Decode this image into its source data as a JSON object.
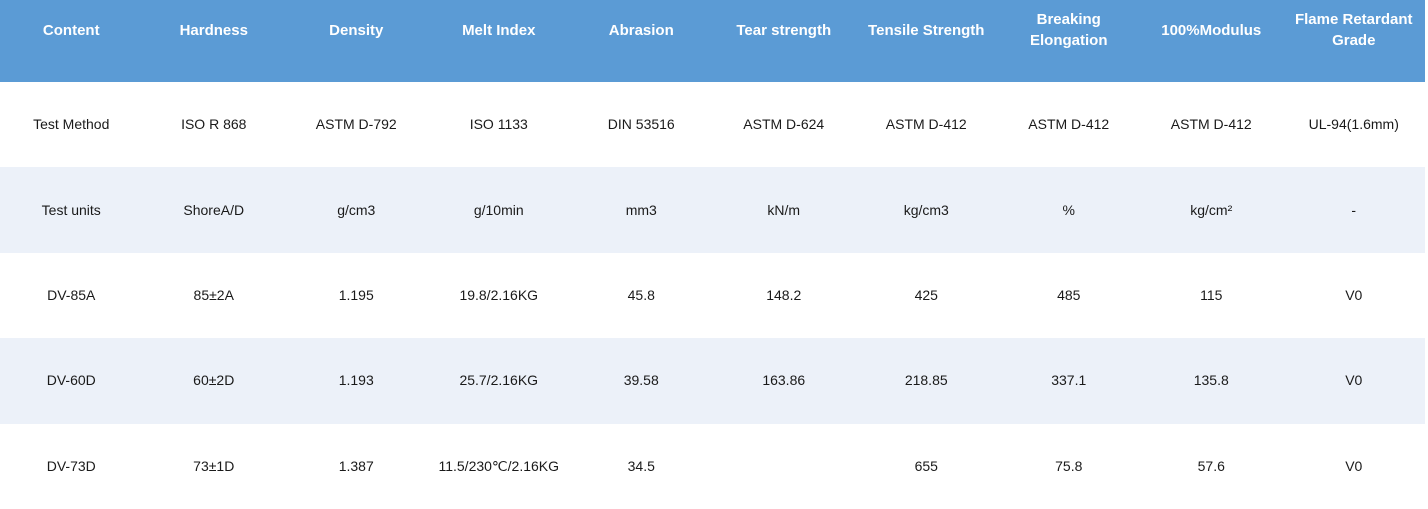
{
  "table": {
    "columns": [
      "Content",
      "Hardness",
      "Density",
      "Melt Index",
      "Abrasion",
      "Tear strength",
      "Tensile Strength",
      "Breaking Elongation",
      "100%Modulus",
      "Flame Retardant Grade"
    ],
    "rows": [
      [
        "Test Method",
        "ISO R 868",
        "ASTM D-792",
        "ISO 1133",
        "DIN 53516",
        "ASTM D-624",
        "ASTM D-412",
        "ASTM D-412",
        "ASTM D-412",
        "UL-94(1.6mm)"
      ],
      [
        "Test units",
        "ShoreA/D",
        "g/cm3",
        "g/10min",
        "mm3",
        "kN/m",
        "kg/cm3",
        "%",
        "kg/cm²",
        "-"
      ],
      [
        "DV-85A",
        "85±2A",
        "1.195",
        "19.8/2.16KG",
        "45.8",
        "148.2",
        "425",
        "485",
        "115",
        "V0"
      ],
      [
        "DV-60D",
        "60±2D",
        "1.193",
        "25.7/2.16KG",
        "39.58",
        "163.86",
        "218.85",
        "337.1",
        "135.8",
        "V0"
      ],
      [
        "DV-73D",
        "73±1D",
        "1.387",
        "11.5/230℃/2.16KG",
        "34.5",
        "",
        "655",
        "75.8",
        "57.6",
        "V0"
      ]
    ],
    "colors": {
      "header_bg": "#5B9BD5",
      "header_text": "#FFFFFF",
      "row_bg": "#FFFFFF",
      "row_alt_bg": "#ECF1F9",
      "body_text": "#1A1A1A"
    }
  }
}
